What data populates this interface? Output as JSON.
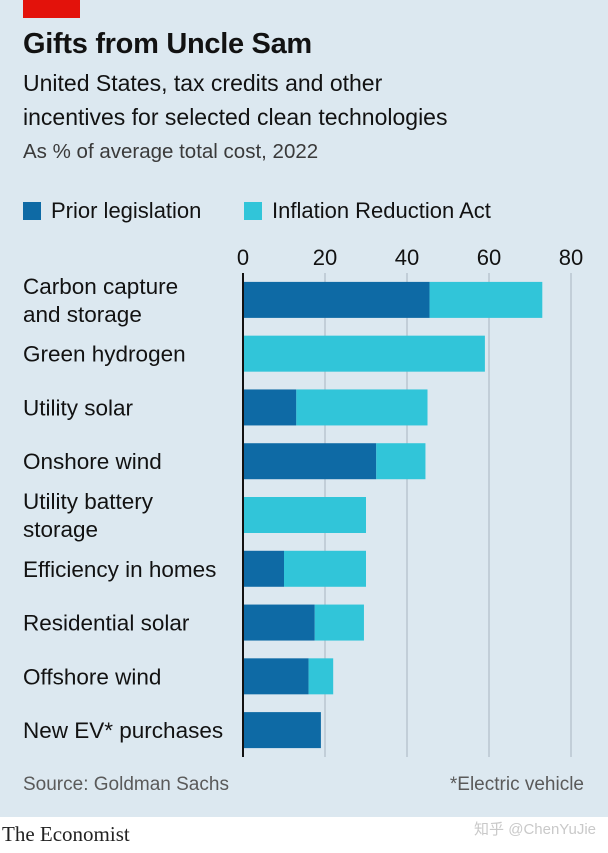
{
  "header": {
    "title": "Gifts from Uncle Sam",
    "subtitle_line1": "United States, tax credits and other",
    "subtitle_line2": "incentives for selected clean technologies",
    "unit": "As % of average total cost, 2022"
  },
  "colors": {
    "background": "#dce8f0",
    "prior": "#0e6aa5",
    "ira": "#31c5d9",
    "accent": "#e3120b",
    "grid": "#b9c6cf",
    "axis": "#121212"
  },
  "chart_data": {
    "type": "bar",
    "orientation": "horizontal",
    "stacked": true,
    "title": "Gifts from Uncle Sam",
    "xlabel": "As % of average total cost, 2022",
    "ylabel": "",
    "xlim": [
      0,
      80
    ],
    "xticks": [
      0,
      20,
      40,
      60,
      80
    ],
    "grid": true,
    "legend_position": "top",
    "categories": [
      [
        "Carbon capture",
        "and storage"
      ],
      [
        "Green hydrogen"
      ],
      [
        "Utility solar"
      ],
      [
        "Onshore wind"
      ],
      [
        "Utility battery",
        "storage"
      ],
      [
        "Efficiency in homes"
      ],
      [
        "Residential solar"
      ],
      [
        "Offshore wind"
      ],
      [
        "New EV* purchases"
      ]
    ],
    "series": [
      {
        "name": "Prior legislation",
        "values": [
          45.5,
          0,
          13,
          32.5,
          0,
          10,
          17.5,
          16,
          19
        ]
      },
      {
        "name": "Inflation Reduction Act",
        "values": [
          27.5,
          59,
          32,
          12,
          30,
          20,
          12,
          6,
          0
        ]
      }
    ]
  },
  "footer": {
    "source": "Source: Goldman Sachs",
    "note": "*Electric vehicle"
  },
  "brand": "The Economist",
  "watermark": "知乎 @ChenYuJie"
}
